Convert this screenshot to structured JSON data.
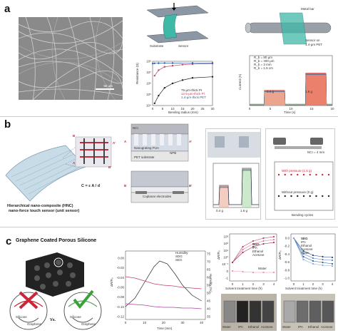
{
  "panel_a": {
    "label": "a",
    "sem_scale": "50 µm",
    "device_labels": {
      "substrate": "Substrate",
      "sensor": "Sensor",
      "metal_bar": "Metal bar",
      "sensor_on": "Sensor on",
      "pi_thick": "1.4-µm PET"
    },
    "bend_chart": {
      "ylabel": "Resistance (Ω)",
      "xlabel": "Bending radius (mm)",
      "x_ticks": [
        "0",
        "5",
        "10",
        "15",
        "20",
        "25",
        "30"
      ],
      "y_ticks": [
        "10⁴",
        "10⁵",
        "10⁶",
        "10⁷",
        "10⁸"
      ],
      "legend": [
        "75-µm-thick PI",
        "12.5-µm-thick PI",
        "1.4-µm-thick PET"
      ]
    },
    "current_chart": {
      "ylabel": "Current (A)",
      "xlabel": "Time (s)",
      "x_ticks": [
        "0",
        "5",
        "10",
        "15",
        "20"
      ],
      "legend": [
        "R_b = 80 µm",
        "R_b = 400 µm",
        "R_b = 3 mm",
        "R_b = 1.5 cm"
      ],
      "bar1": "0.4 g",
      "bar2": "1.6 g"
    }
  },
  "panel_b": {
    "label": "b",
    "hnc_caption_line1": "Hierarchical nano-composite (HNC)",
    "hnc_caption_line2": "nano-force touch sensor (unit sensor)",
    "formula": "C = ε A / d",
    "cross_labels": {
      "a": "A",
      "a_prime": "A'",
      "b": "B",
      "b_prime": "B'"
    },
    "layer_labels": {
      "nci": "NCI",
      "nanograting": "Nanograting PUA",
      "npb": "NPB",
      "pet": "PET substrate",
      "coplanar": "Coplanar electrodes"
    },
    "response_chart": {
      "annot1": "0.4 g",
      "annot2": "1.6 g"
    },
    "nci_label": "NCI = 4 mm",
    "series_label1": "With pressure (1.6 g)",
    "series_label2": "Without pressure (0 g)",
    "cycle_xlabel": "Bending cycles"
  },
  "panel_c": {
    "label": "c",
    "title": "Graphene Coated Porous Silicone",
    "circle_labels": {
      "silicone1": "Silicone",
      "graphene1": "Graphene",
      "silicone2": "Silicone",
      "graphene2": "Graphene",
      "vs": "Vs."
    },
    "response_chart": {
      "ylabel": "ΔR/R₀",
      "y2label": "Humidity (%)",
      "xlabel": "Time (min)",
      "x_ticks": [
        "0",
        "10",
        "20",
        "30",
        "40"
      ],
      "y_ticks": [
        "0.00",
        "-0.02",
        "-0.04",
        "-0.06",
        "-0.08",
        "-0.10",
        "-0.12"
      ],
      "y2_ticks": [
        "75",
        "70",
        "65",
        "60",
        "55",
        "50",
        "45",
        "40",
        "35"
      ],
      "legend": [
        "Humidity",
        "SDG",
        "SEG"
      ]
    },
    "sdg_chart": {
      "ylabel": "ΔR/R₀",
      "xlabel": "Solvent treatment time (h)",
      "x_ticks": [
        "0",
        "1",
        "2",
        "3",
        "4"
      ],
      "legend_title": "SDG",
      "legend": [
        "IPA",
        "Ethanol",
        "Acetone",
        "Water"
      ],
      "y_ticks": [
        "10³",
        "10²",
        "10¹",
        "10⁰",
        "10⁻¹",
        "0",
        "-1"
      ]
    },
    "seg_chart": {
      "ylabel": "ΔR/R₀",
      "xlabel": "Solvent treatment time (h)",
      "x_ticks": [
        "0",
        "1",
        "2",
        "3",
        "4"
      ],
      "legend_title": "SEG",
      "legend": [
        "IPA",
        "Ethanol",
        "Acetone",
        "Water"
      ],
      "y_ticks": [
        "0.0",
        "-0.2",
        "-0.4",
        "-0.6",
        "-0.8",
        "-1.0"
      ]
    },
    "vials1": [
      "Water",
      "IPA",
      "Ethanol",
      "Acetone"
    ],
    "vials2": [
      "Water",
      "IPA",
      "Ethanol",
      "Acetone"
    ]
  },
  "colors": {
    "pink": "#e0407a",
    "blue": "#2c5fa8",
    "orange": "#e8573a",
    "green": "#5aa05a",
    "grey": "#888888"
  }
}
